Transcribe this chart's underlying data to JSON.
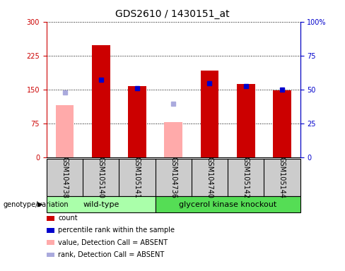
{
  "title": "GDS2610 / 1430151_at",
  "samples": [
    "GSM104738",
    "GSM105140",
    "GSM105141",
    "GSM104736",
    "GSM104740",
    "GSM105142",
    "GSM105144"
  ],
  "count_values": [
    null,
    248,
    157,
    null,
    192,
    162,
    148
  ],
  "count_absent": [
    115,
    null,
    null,
    78,
    null,
    null,
    null
  ],
  "rank_values": [
    null,
    172,
    152,
    null,
    163,
    158,
    150
  ],
  "rank_absent": [
    143,
    null,
    null,
    118,
    null,
    null,
    null
  ],
  "ylim_left": [
    0,
    300
  ],
  "ylim_right": [
    0,
    100
  ],
  "yticks_left": [
    0,
    75,
    150,
    225,
    300
  ],
  "yticks_right": [
    0,
    25,
    50,
    75,
    100
  ],
  "ytick_labels_right": [
    "0",
    "25",
    "50",
    "75",
    "100%"
  ],
  "color_count": "#cc0000",
  "color_rank": "#0000cc",
  "color_absent_count": "#ffaaaa",
  "color_absent_rank": "#aaaadd",
  "color_wildtype_bg": "#aaffaa",
  "color_knockout_bg": "#55dd55",
  "bg_color": "#cccccc",
  "wt_count": 3,
  "ko_count": 4,
  "title_fontsize": 10,
  "tick_fontsize": 7,
  "legend_fontsize": 7,
  "group_fontsize": 8
}
